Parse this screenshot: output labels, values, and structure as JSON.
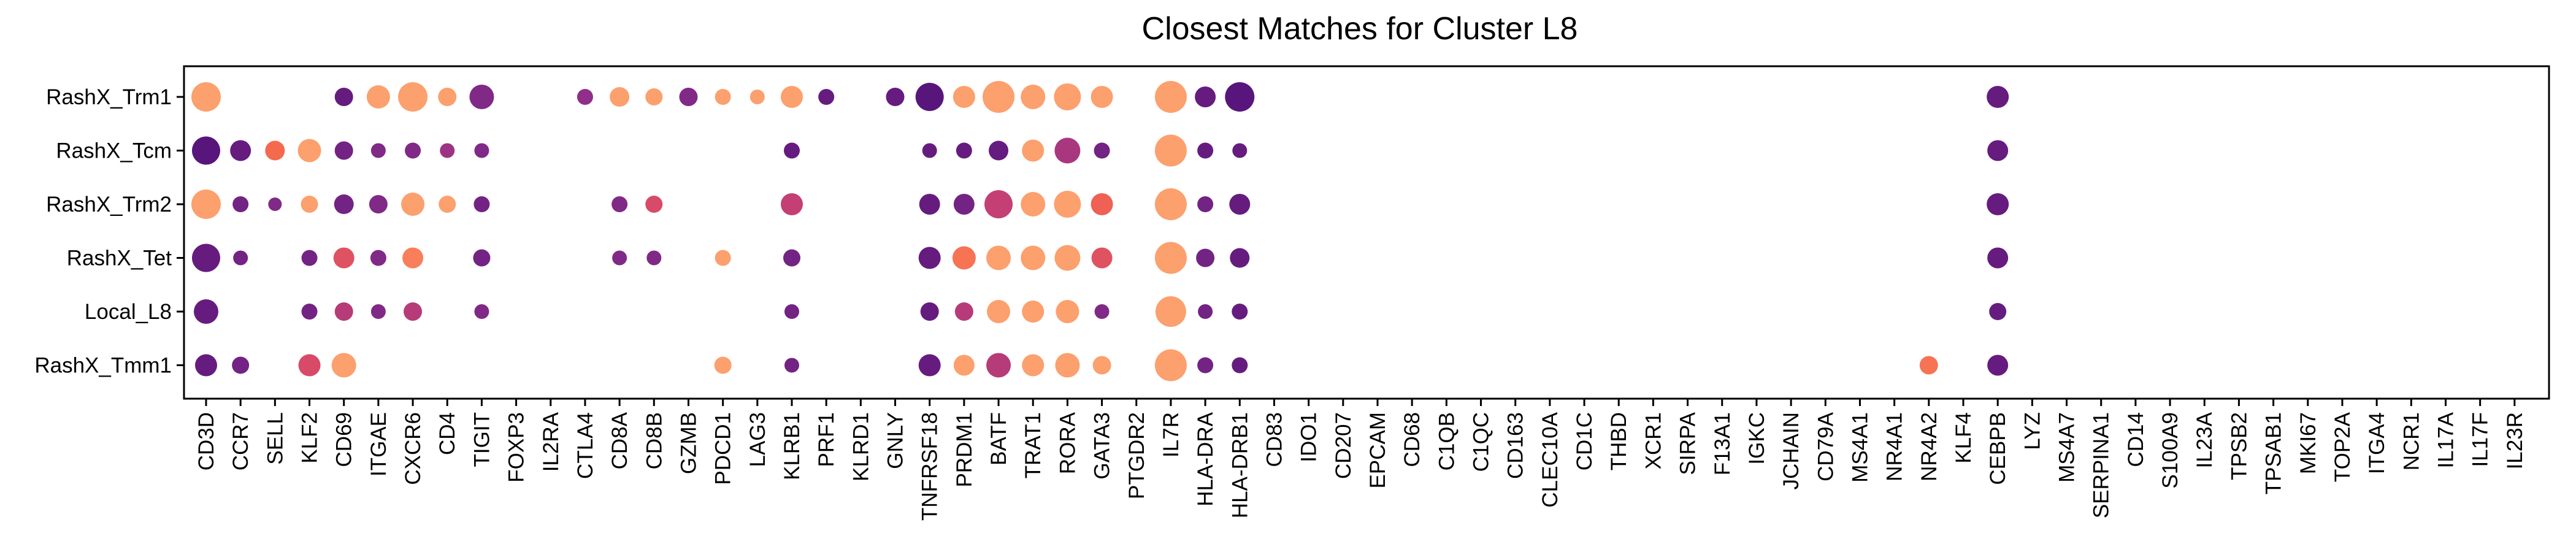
{
  "chart_data": {
    "type": "dotplot",
    "title": "Closest Matches for Cluster L8",
    "xlabel": "",
    "ylabel": "",
    "grid": false,
    "legend": "none",
    "rows": [
      "RashX_Trm1",
      "RashX_Tcm",
      "RashX_Trm2",
      "RashX_Tet",
      "Local_L8",
      "RashX_Tmm1"
    ],
    "genes": [
      "CD3D",
      "CCR7",
      "SELL",
      "KLF2",
      "CD69",
      "ITGAE",
      "CXCR6",
      "CD4",
      "TIGIT",
      "FOXP3",
      "IL2RA",
      "CTLA4",
      "CD8A",
      "CD8B",
      "GZMB",
      "PDCD1",
      "LAG3",
      "KLRB1",
      "PRF1",
      "KLRD1",
      "GNLY",
      "TNFRSF18",
      "PRDM1",
      "BATF",
      "TRAT1",
      "RORA",
      "GATA3",
      "PTGDR2",
      "IL7R",
      "HLA-DRA",
      "HLA-DRB1",
      "CD83",
      "IDO1",
      "CD207",
      "EPCAM",
      "CD68",
      "C1QB",
      "C1QC",
      "CD163",
      "CLEC10A",
      "CD1C",
      "THBD",
      "XCR1",
      "SIRPA",
      "F13A1",
      "IGKC",
      "JCHAIN",
      "CD79A",
      "MS4A1",
      "NR4A1",
      "NR4A2",
      "KLF4",
      "CEBPB",
      "LYZ",
      "MS4A7",
      "SERPINA1",
      "CD14",
      "S100A9",
      "IL23A",
      "TPSB2",
      "TPSAB1",
      "MKI67",
      "TOP2A",
      "ITGA4",
      "NCR1",
      "IL17A",
      "IL17F",
      "IL23R"
    ],
    "scale": {
      "size": "fraction of cells expressing (0-1)",
      "color": "mean expression (0 = dark purple, 1 = light orange)"
    },
    "palette": [
      "#4a1079",
      "#8f2f89",
      "#d0436f",
      "#f5694d",
      "#fca06e"
    ],
    "points": [
      {
        "row": "RashX_Trm1",
        "gene": "CD3D",
        "size": 0.9,
        "color": 1.0
      },
      {
        "row": "RashX_Trm1",
        "gene": "CD69",
        "size": 0.45,
        "color": 0.1
      },
      {
        "row": "RashX_Trm1",
        "gene": "ITGAE",
        "size": 0.65,
        "color": 1.0
      },
      {
        "row": "RashX_Trm1",
        "gene": "CXCR6",
        "size": 0.9,
        "color": 1.0
      },
      {
        "row": "RashX_Trm1",
        "gene": "CD4",
        "size": 0.45,
        "color": 1.0
      },
      {
        "row": "RashX_Trm1",
        "gene": "TIGIT",
        "size": 0.7,
        "color": 0.2
      },
      {
        "row": "RashX_Trm1",
        "gene": "CTLA4",
        "size": 0.35,
        "color": 0.25
      },
      {
        "row": "RashX_Trm1",
        "gene": "CD8A",
        "size": 0.5,
        "color": 1.0
      },
      {
        "row": "RashX_Trm1",
        "gene": "CD8B",
        "size": 0.4,
        "color": 1.0
      },
      {
        "row": "RashX_Trm1",
        "gene": "GZMB",
        "size": 0.45,
        "color": 0.2
      },
      {
        "row": "RashX_Trm1",
        "gene": "PDCD1",
        "size": 0.35,
        "color": 1.0
      },
      {
        "row": "RashX_Trm1",
        "gene": "LAG3",
        "size": 0.3,
        "color": 1.0
      },
      {
        "row": "RashX_Trm1",
        "gene": "KLRB1",
        "size": 0.6,
        "color": 1.0
      },
      {
        "row": "RashX_Trm1",
        "gene": "PRF1",
        "size": 0.35,
        "color": 0.1
      },
      {
        "row": "RashX_Trm1",
        "gene": "GNLY",
        "size": 0.45,
        "color": 0.1
      },
      {
        "row": "RashX_Trm1",
        "gene": "TNFRSF18",
        "size": 0.85,
        "color": 0.05
      },
      {
        "row": "RashX_Trm1",
        "gene": "PRDM1",
        "size": 0.6,
        "color": 1.0
      },
      {
        "row": "RashX_Trm1",
        "gene": "BATF",
        "size": 1.0,
        "color": 1.0
      },
      {
        "row": "RashX_Trm1",
        "gene": "TRAT1",
        "size": 0.7,
        "color": 1.0
      },
      {
        "row": "RashX_Trm1",
        "gene": "RORA",
        "size": 0.8,
        "color": 1.0
      },
      {
        "row": "RashX_Trm1",
        "gene": "GATA3",
        "size": 0.6,
        "color": 1.0
      },
      {
        "row": "RashX_Trm1",
        "gene": "IL7R",
        "size": 1.0,
        "color": 1.0
      },
      {
        "row": "RashX_Trm1",
        "gene": "HLA-DRA",
        "size": 0.55,
        "color": 0.1
      },
      {
        "row": "RashX_Trm1",
        "gene": "HLA-DRB1",
        "size": 0.9,
        "color": 0.05
      },
      {
        "row": "RashX_Trm1",
        "gene": "CEBPB",
        "size": 0.6,
        "color": 0.1
      },
      {
        "row": "RashX_Tcm",
        "gene": "CD3D",
        "size": 0.85,
        "color": 0.05
      },
      {
        "row": "RashX_Tcm",
        "gene": "CCR7",
        "size": 0.55,
        "color": 0.1
      },
      {
        "row": "RashX_Tcm",
        "gene": "SELL",
        "size": 0.5,
        "color": 0.75
      },
      {
        "row": "RashX_Tcm",
        "gene": "KLF2",
        "size": 0.65,
        "color": 1.0
      },
      {
        "row": "RashX_Tcm",
        "gene": "CD69",
        "size": 0.45,
        "color": 0.15
      },
      {
        "row": "RashX_Tcm",
        "gene": "ITGAE",
        "size": 0.3,
        "color": 0.2
      },
      {
        "row": "RashX_Tcm",
        "gene": "CXCR6",
        "size": 0.35,
        "color": 0.2
      },
      {
        "row": "RashX_Tcm",
        "gene": "CD4",
        "size": 0.3,
        "color": 0.3
      },
      {
        "row": "RashX_Tcm",
        "gene": "TIGIT",
        "size": 0.3,
        "color": 0.2
      },
      {
        "row": "RashX_Tcm",
        "gene": "KLRB1",
        "size": 0.35,
        "color": 0.1
      },
      {
        "row": "RashX_Tcm",
        "gene": "TNFRSF18",
        "size": 0.3,
        "color": 0.1
      },
      {
        "row": "RashX_Tcm",
        "gene": "PRDM1",
        "size": 0.35,
        "color": 0.1
      },
      {
        "row": "RashX_Tcm",
        "gene": "BATF",
        "size": 0.5,
        "color": 0.1
      },
      {
        "row": "RashX_Tcm",
        "gene": "TRAT1",
        "size": 0.6,
        "color": 1.0
      },
      {
        "row": "RashX_Tcm",
        "gene": "RORA",
        "size": 0.75,
        "color": 0.35
      },
      {
        "row": "RashX_Tcm",
        "gene": "GATA3",
        "size": 0.35,
        "color": 0.15
      },
      {
        "row": "RashX_Tcm",
        "gene": "IL7R",
        "size": 1.0,
        "color": 1.0
      },
      {
        "row": "RashX_Tcm",
        "gene": "HLA-DRA",
        "size": 0.35,
        "color": 0.1
      },
      {
        "row": "RashX_Tcm",
        "gene": "HLA-DRB1",
        "size": 0.3,
        "color": 0.1
      },
      {
        "row": "RashX_Tcm",
        "gene": "CEBPB",
        "size": 0.55,
        "color": 0.1
      },
      {
        "row": "RashX_Trm2",
        "gene": "CD3D",
        "size": 0.9,
        "color": 1.0
      },
      {
        "row": "RashX_Trm2",
        "gene": "CCR7",
        "size": 0.35,
        "color": 0.15
      },
      {
        "row": "RashX_Trm2",
        "gene": "SELL",
        "size": 0.25,
        "color": 0.2
      },
      {
        "row": "RashX_Trm2",
        "gene": "KLF2",
        "size": 0.4,
        "color": 1.0
      },
      {
        "row": "RashX_Trm2",
        "gene": "CD69",
        "size": 0.5,
        "color": 0.15
      },
      {
        "row": "RashX_Trm2",
        "gene": "ITGAE",
        "size": 0.45,
        "color": 0.2
      },
      {
        "row": "RashX_Trm2",
        "gene": "CXCR6",
        "size": 0.65,
        "color": 1.0
      },
      {
        "row": "RashX_Trm2",
        "gene": "CD4",
        "size": 0.4,
        "color": 1.0
      },
      {
        "row": "RashX_Trm2",
        "gene": "TIGIT",
        "size": 0.35,
        "color": 0.15
      },
      {
        "row": "RashX_Trm2",
        "gene": "CD8A",
        "size": 0.35,
        "color": 0.2
      },
      {
        "row": "RashX_Trm2",
        "gene": "CD8B",
        "size": 0.4,
        "color": 0.55
      },
      {
        "row": "RashX_Trm2",
        "gene": "KLRB1",
        "size": 0.6,
        "color": 0.45
      },
      {
        "row": "RashX_Trm2",
        "gene": "TNFRSF18",
        "size": 0.55,
        "color": 0.1
      },
      {
        "row": "RashX_Trm2",
        "gene": "PRDM1",
        "size": 0.55,
        "color": 0.15
      },
      {
        "row": "RashX_Trm2",
        "gene": "BATF",
        "size": 0.85,
        "color": 0.45
      },
      {
        "row": "RashX_Trm2",
        "gene": "TRAT1",
        "size": 0.7,
        "color": 1.0
      },
      {
        "row": "RashX_Trm2",
        "gene": "RORA",
        "size": 0.8,
        "color": 1.0
      },
      {
        "row": "RashX_Trm2",
        "gene": "GATA3",
        "size": 0.6,
        "color": 0.7
      },
      {
        "row": "RashX_Trm2",
        "gene": "IL7R",
        "size": 1.0,
        "color": 1.0
      },
      {
        "row": "RashX_Trm2",
        "gene": "HLA-DRA",
        "size": 0.35,
        "color": 0.15
      },
      {
        "row": "RashX_Trm2",
        "gene": "HLA-DRB1",
        "size": 0.55,
        "color": 0.1
      },
      {
        "row": "RashX_Trm2",
        "gene": "CEBPB",
        "size": 0.6,
        "color": 0.1
      },
      {
        "row": "RashX_Tet",
        "gene": "CD3D",
        "size": 0.85,
        "color": 0.1
      },
      {
        "row": "RashX_Tet",
        "gene": "CCR7",
        "size": 0.3,
        "color": 0.15
      },
      {
        "row": "RashX_Tet",
        "gene": "KLF2",
        "size": 0.35,
        "color": 0.15
      },
      {
        "row": "RashX_Tet",
        "gene": "CD69",
        "size": 0.55,
        "color": 0.6
      },
      {
        "row": "RashX_Tet",
        "gene": "ITGAE",
        "size": 0.35,
        "color": 0.2
      },
      {
        "row": "RashX_Tet",
        "gene": "CXCR6",
        "size": 0.55,
        "color": 0.85
      },
      {
        "row": "RashX_Tet",
        "gene": "TIGIT",
        "size": 0.4,
        "color": 0.15
      },
      {
        "row": "RashX_Tet",
        "gene": "CD8A",
        "size": 0.3,
        "color": 0.2
      },
      {
        "row": "RashX_Tet",
        "gene": "CD8B",
        "size": 0.3,
        "color": 0.2
      },
      {
        "row": "RashX_Tet",
        "gene": "PDCD1",
        "size": 0.35,
        "color": 1.0
      },
      {
        "row": "RashX_Tet",
        "gene": "KLRB1",
        "size": 0.4,
        "color": 0.15
      },
      {
        "row": "RashX_Tet",
        "gene": "TNFRSF18",
        "size": 0.6,
        "color": 0.1
      },
      {
        "row": "RashX_Tet",
        "gene": "PRDM1",
        "size": 0.65,
        "color": 0.8
      },
      {
        "row": "RashX_Tet",
        "gene": "BATF",
        "size": 0.7,
        "color": 1.0
      },
      {
        "row": "RashX_Tet",
        "gene": "TRAT1",
        "size": 0.7,
        "color": 1.0
      },
      {
        "row": "RashX_Tet",
        "gene": "RORA",
        "size": 0.75,
        "color": 1.0
      },
      {
        "row": "RashX_Tet",
        "gene": "GATA3",
        "size": 0.55,
        "color": 0.6
      },
      {
        "row": "RashX_Tet",
        "gene": "IL7R",
        "size": 1.0,
        "color": 1.0
      },
      {
        "row": "RashX_Tet",
        "gene": "HLA-DRA",
        "size": 0.45,
        "color": 0.15
      },
      {
        "row": "RashX_Tet",
        "gene": "HLA-DRB1",
        "size": 0.5,
        "color": 0.1
      },
      {
        "row": "RashX_Tet",
        "gene": "CEBPB",
        "size": 0.55,
        "color": 0.1
      },
      {
        "row": "Local_L8",
        "gene": "CD3D",
        "size": 0.7,
        "color": 0.1
      },
      {
        "row": "Local_L8",
        "gene": "KLF2",
        "size": 0.35,
        "color": 0.15
      },
      {
        "row": "Local_L8",
        "gene": "CD69",
        "size": 0.45,
        "color": 0.4
      },
      {
        "row": "Local_L8",
        "gene": "ITGAE",
        "size": 0.3,
        "color": 0.2
      },
      {
        "row": "Local_L8",
        "gene": "CXCR6",
        "size": 0.45,
        "color": 0.4
      },
      {
        "row": "Local_L8",
        "gene": "TIGIT",
        "size": 0.3,
        "color": 0.2
      },
      {
        "row": "Local_L8",
        "gene": "KLRB1",
        "size": 0.3,
        "color": 0.15
      },
      {
        "row": "Local_L8",
        "gene": "TNFRSF18",
        "size": 0.45,
        "color": 0.1
      },
      {
        "row": "Local_L8",
        "gene": "PRDM1",
        "size": 0.45,
        "color": 0.4
      },
      {
        "row": "Local_L8",
        "gene": "BATF",
        "size": 0.65,
        "color": 1.0
      },
      {
        "row": "Local_L8",
        "gene": "TRAT1",
        "size": 0.6,
        "color": 1.0
      },
      {
        "row": "Local_L8",
        "gene": "RORA",
        "size": 0.65,
        "color": 1.0
      },
      {
        "row": "Local_L8",
        "gene": "GATA3",
        "size": 0.3,
        "color": 0.2
      },
      {
        "row": "Local_L8",
        "gene": "IL7R",
        "size": 0.95,
        "color": 1.0
      },
      {
        "row": "Local_L8",
        "gene": "HLA-DRA",
        "size": 0.3,
        "color": 0.15
      },
      {
        "row": "Local_L8",
        "gene": "HLA-DRB1",
        "size": 0.35,
        "color": 0.1
      },
      {
        "row": "Local_L8",
        "gene": "CEBPB",
        "size": 0.4,
        "color": 0.1
      },
      {
        "row": "RashX_Tmm1",
        "gene": "CD3D",
        "size": 0.6,
        "color": 0.1
      },
      {
        "row": "RashX_Tmm1",
        "gene": "CCR7",
        "size": 0.4,
        "color": 0.15
      },
      {
        "row": "RashX_Tmm1",
        "gene": "KLF2",
        "size": 0.6,
        "color": 0.55
      },
      {
        "row": "RashX_Tmm1",
        "gene": "CD69",
        "size": 0.7,
        "color": 1.0
      },
      {
        "row": "RashX_Tmm1",
        "gene": "PDCD1",
        "size": 0.4,
        "color": 1.0
      },
      {
        "row": "RashX_Tmm1",
        "gene": "KLRB1",
        "size": 0.3,
        "color": 0.15
      },
      {
        "row": "RashX_Tmm1",
        "gene": "TNFRSF18",
        "size": 0.6,
        "color": 0.1
      },
      {
        "row": "RashX_Tmm1",
        "gene": "PRDM1",
        "size": 0.55,
        "color": 1.0
      },
      {
        "row": "RashX_Tmm1",
        "gene": "BATF",
        "size": 0.7,
        "color": 0.4
      },
      {
        "row": "RashX_Tmm1",
        "gene": "TRAT1",
        "size": 0.6,
        "color": 1.0
      },
      {
        "row": "RashX_Tmm1",
        "gene": "RORA",
        "size": 0.7,
        "color": 1.0
      },
      {
        "row": "RashX_Tmm1",
        "gene": "GATA3",
        "size": 0.45,
        "color": 1.0
      },
      {
        "row": "RashX_Tmm1",
        "gene": "IL7R",
        "size": 1.0,
        "color": 1.0
      },
      {
        "row": "RashX_Tmm1",
        "gene": "HLA-DRA",
        "size": 0.35,
        "color": 0.15
      },
      {
        "row": "RashX_Tmm1",
        "gene": "HLA-DRB1",
        "size": 0.35,
        "color": 0.1
      },
      {
        "row": "RashX_Tmm1",
        "gene": "NR4A2",
        "size": 0.45,
        "color": 0.8
      },
      {
        "row": "RashX_Tmm1",
        "gene": "CEBPB",
        "size": 0.55,
        "color": 0.1
      }
    ]
  }
}
